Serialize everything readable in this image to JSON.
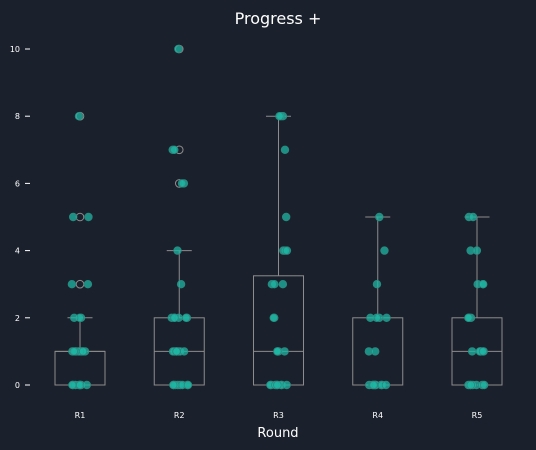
{
  "chart_data": {
    "type": "box",
    "title": "Progress +",
    "xlabel": "Round",
    "ylabel": "",
    "ylim": [
      -0.5,
      10.5
    ],
    "yticks": [
      0,
      2,
      4,
      6,
      8,
      10
    ],
    "grid": false,
    "colors": {
      "point": "#1fb5a3",
      "box": "#8c8c8c",
      "background": "#1b212c"
    },
    "categories": [
      "R1",
      "R2",
      "R3",
      "R4",
      "R5"
    ],
    "boxes": [
      {
        "name": "R1",
        "q1": 0,
        "median": 1,
        "q3": 1,
        "whisker_low": 0,
        "whisker_high": 2,
        "outliers": [
          3,
          5,
          8
        ]
      },
      {
        "name": "R2",
        "q1": 0,
        "median": 1,
        "q3": 2,
        "whisker_low": 0,
        "whisker_high": 4,
        "outliers": [
          6,
          7,
          10
        ]
      },
      {
        "name": "R3",
        "q1": 0,
        "median": 1,
        "q3": 3.25,
        "whisker_low": 0,
        "whisker_high": 8,
        "outliers": []
      },
      {
        "name": "R4",
        "q1": 0,
        "median": 0,
        "q3": 2,
        "whisker_low": 0,
        "whisker_high": 5,
        "outliers": []
      },
      {
        "name": "R5",
        "q1": 0,
        "median": 1,
        "q3": 2,
        "whisker_low": 0,
        "whisker_high": 5,
        "outliers": []
      }
    ],
    "points": [
      [
        0,
        0,
        0,
        0,
        0,
        0,
        0,
        0,
        1,
        1,
        1,
        1,
        1,
        1,
        1,
        1,
        1,
        1,
        2,
        2,
        2,
        3,
        3,
        5,
        5,
        8
      ],
      [
        0,
        0,
        0,
        0,
        0,
        0,
        0,
        0,
        1,
        1,
        1,
        1,
        1,
        1,
        1,
        1,
        2,
        2,
        2,
        2,
        2,
        2,
        3,
        4,
        6,
        6,
        7,
        7,
        10
      ],
      [
        0,
        0,
        0,
        0,
        0,
        0,
        0,
        0,
        1,
        1,
        1,
        1,
        1,
        2,
        2,
        3,
        3,
        3,
        4,
        4,
        4,
        5,
        7,
        8,
        8,
        8
      ],
      [
        0,
        0,
        0,
        0,
        0,
        0,
        0,
        0,
        0,
        1,
        1,
        2,
        2,
        2,
        2,
        3,
        4,
        5
      ],
      [
        0,
        0,
        0,
        0,
        0,
        0,
        0,
        1,
        1,
        1,
        1,
        1,
        1,
        2,
        2,
        2,
        2,
        3,
        3,
        3,
        4,
        4,
        5,
        5
      ]
    ]
  }
}
